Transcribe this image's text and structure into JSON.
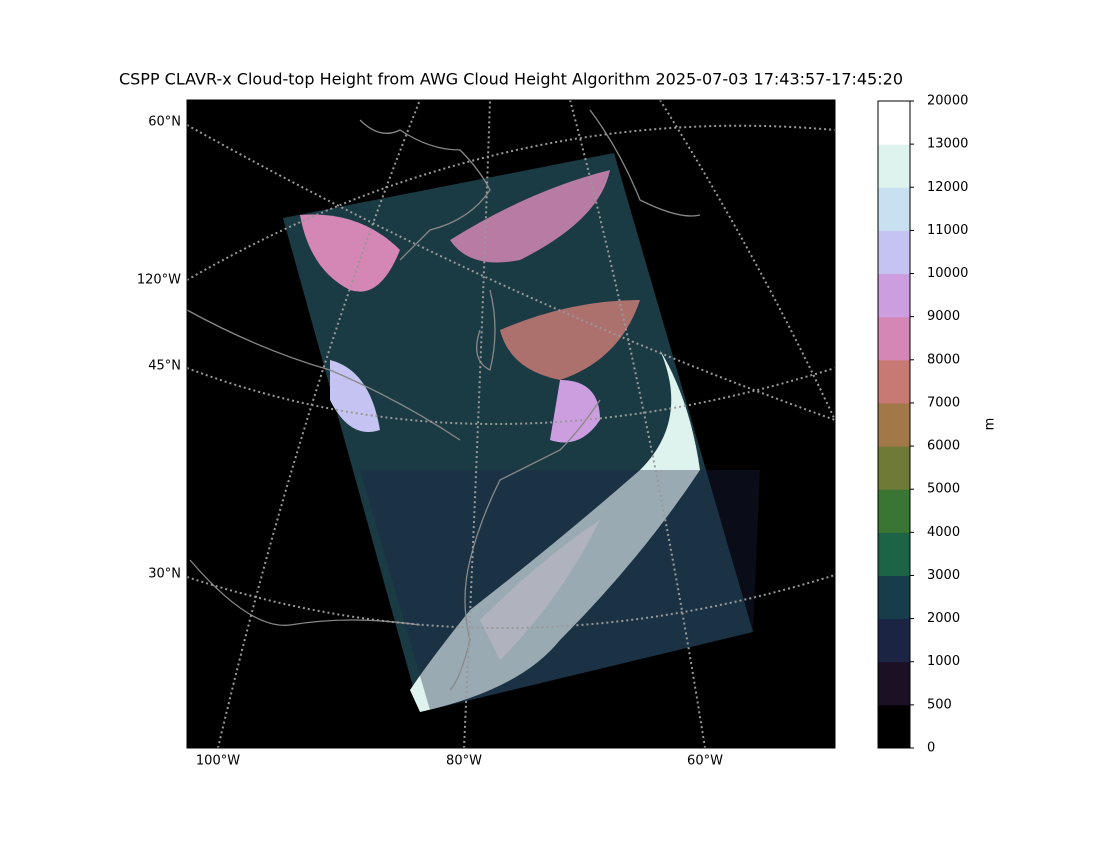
{
  "title": "CSPP CLAVR-x Cloud-top Height from AWG Cloud Height Algorithm 2025-07-03 17:43:57-17:45:20",
  "map": {
    "left_labels": [
      "60°N",
      "120°W",
      "45°N",
      "30°N"
    ],
    "bottom_labels": [
      "100°W",
      "80°W",
      "60°W"
    ]
  },
  "colorbar": {
    "label": "m",
    "ticks": [
      0,
      500,
      1000,
      2000,
      3000,
      4000,
      5000,
      6000,
      7000,
      8000,
      9000,
      10000,
      11000,
      12000,
      13000,
      20000
    ],
    "colors": [
      "#000000",
      "#1b1024",
      "#1c2444",
      "#183d4a",
      "#1d6447",
      "#3b7533",
      "#6e7a35",
      "#a27849",
      "#c77a74",
      "#d487b5",
      "#cc9ee0",
      "#c5c3f1",
      "#c9e0f1",
      "#def2ee",
      "#ffffff"
    ]
  }
}
